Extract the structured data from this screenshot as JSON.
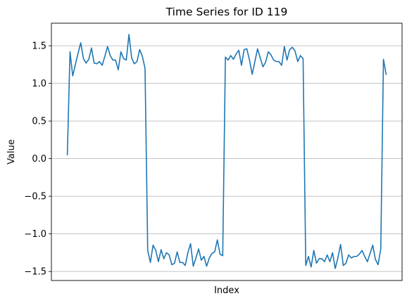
{
  "chart_data": {
    "type": "line",
    "title": "Time Series for ID 119",
    "xlabel": "Index",
    "ylabel": "Value",
    "ylim": [
      -1.62,
      1.8
    ],
    "y_ticks": [
      1.5,
      1.0,
      0.5,
      0.0,
      -0.5,
      -1.0,
      -1.5
    ],
    "y_tick_labels": [
      "1.5",
      "1.0",
      "0.5",
      "0.0",
      "−0.5",
      "−1.0",
      "−1.5"
    ],
    "x_ticks_visible": false,
    "grid": "horizontal",
    "line_color": "#1f77b4",
    "series": [
      {
        "x": [
          0,
          1,
          2,
          3,
          4,
          5,
          6,
          7,
          8,
          9,
          10,
          11,
          12,
          13,
          14,
          15,
          16,
          17,
          18,
          19,
          20,
          21,
          22,
          23,
          24,
          25,
          26,
          27,
          28,
          29,
          30,
          31,
          32,
          33,
          34,
          35,
          36,
          37,
          38,
          39,
          40,
          41,
          42,
          43,
          44,
          45,
          46,
          47,
          48,
          49,
          50,
          51,
          52,
          53,
          54,
          55,
          56,
          57,
          58,
          59,
          60,
          61,
          62,
          63,
          64,
          65,
          66,
          67,
          68,
          69,
          70,
          71,
          72,
          73,
          74,
          75,
          76,
          77,
          78,
          79,
          80,
          81,
          82,
          83,
          84,
          85,
          86,
          87,
          88,
          89,
          90,
          91,
          92,
          93,
          94,
          95,
          96,
          97,
          98,
          99,
          100,
          101,
          102,
          103,
          104,
          105,
          106,
          107,
          108,
          109,
          110,
          111,
          112,
          113,
          114,
          115,
          116,
          117,
          118,
          119
        ],
        "y": [
          0.05,
          1.42,
          1.1,
          1.25,
          1.4,
          1.54,
          1.33,
          1.27,
          1.32,
          1.47,
          1.27,
          1.26,
          1.29,
          1.24,
          1.36,
          1.49,
          1.37,
          1.31,
          1.31,
          1.18,
          1.42,
          1.33,
          1.31,
          1.65,
          1.34,
          1.26,
          1.29,
          1.45,
          1.36,
          1.2,
          -1.22,
          -1.38,
          -1.15,
          -1.22,
          -1.37,
          -1.21,
          -1.33,
          -1.25,
          -1.28,
          -1.41,
          -1.39,
          -1.24,
          -1.38,
          -1.38,
          -1.42,
          -1.25,
          -1.13,
          -1.43,
          -1.32,
          -1.2,
          -1.35,
          -1.3,
          -1.43,
          -1.32,
          -1.26,
          -1.24,
          -1.08,
          -1.27,
          -1.29,
          1.35,
          1.31,
          1.37,
          1.32,
          1.39,
          1.44,
          1.24,
          1.45,
          1.46,
          1.31,
          1.12,
          1.29,
          1.46,
          1.34,
          1.22,
          1.28,
          1.42,
          1.38,
          1.31,
          1.29,
          1.29,
          1.24,
          1.49,
          1.31,
          1.45,
          1.48,
          1.43,
          1.29,
          1.37,
          1.33,
          -1.42,
          -1.3,
          -1.44,
          -1.22,
          -1.39,
          -1.33,
          -1.33,
          -1.37,
          -1.28,
          -1.37,
          -1.25,
          -1.46,
          -1.32,
          -1.14,
          -1.42,
          -1.39,
          -1.28,
          -1.32,
          -1.3,
          -1.3,
          -1.27,
          -1.22,
          -1.3,
          -1.37,
          -1.26,
          -1.15,
          -1.34,
          -1.41,
          -1.2,
          1.32,
          1.12
        ]
      }
    ]
  }
}
